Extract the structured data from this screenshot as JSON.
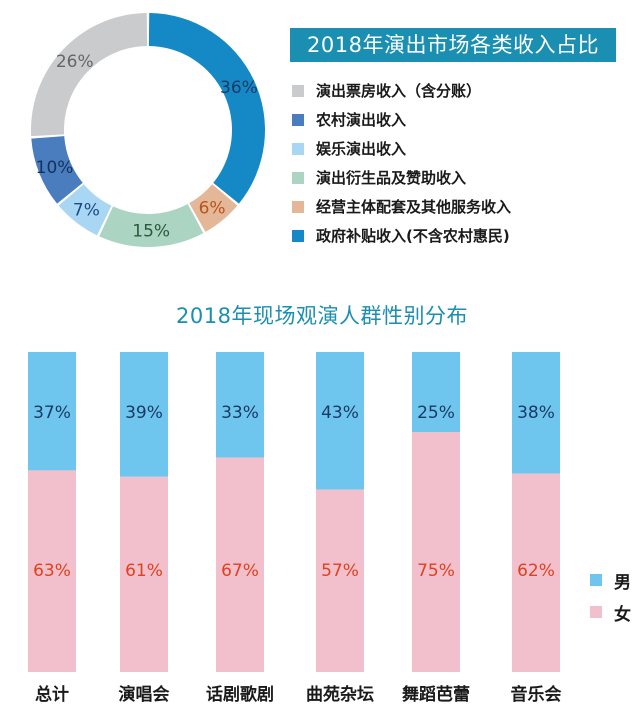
{
  "chart_data": [
    {
      "type": "pie",
      "title": "2018年演出市场各类收入占比",
      "slices": [
        {
          "label": "政府补贴收入(不含农村惠民)",
          "value": 36,
          "display": "36%",
          "color": "#1589c5",
          "label_color": "#1a3a66"
        },
        {
          "label": "经营主体配套及其他服务收入",
          "value": 6,
          "display": "6%",
          "color": "#e3b797",
          "label_color": "#b8531d"
        },
        {
          "label": "演出衍生品及赞助收入",
          "value": 15,
          "display": "15%",
          "color": "#abd4c3",
          "label_color": "#2a5a3a"
        },
        {
          "label": "娱乐演出收入",
          "value": 7,
          "display": "7%",
          "color": "#a9d7f3",
          "label_color": "#1a4a88"
        },
        {
          "label": "农村演出收入",
          "value": 10,
          "display": "10%",
          "color": "#4a7dbd",
          "label_color": "#15305e"
        },
        {
          "label": "演出票房收入（含分账）",
          "value": 26,
          "display": "26%",
          "color": "#c9cbcd",
          "label_color": "#666666"
        }
      ],
      "legend_order": [
        {
          "label": "演出票房收入（含分账）",
          "color": "#c9cbcd"
        },
        {
          "label": "农村演出收入",
          "color": "#4a7dbd"
        },
        {
          "label": "娱乐演出收入",
          "color": "#a9d7f3"
        },
        {
          "label": "演出衍生品及赞助收入",
          "color": "#abd4c3"
        },
        {
          "label": "经营主体配套及其他服务收入",
          "color": "#e3b797"
        },
        {
          "label": "政府补贴收入(不含农村惠民)",
          "color": "#1589c5"
        }
      ]
    },
    {
      "type": "bar",
      "stacked": true,
      "title": "2018年现场观演人群性别分布",
      "categories": [
        "总计",
        "演唱会",
        "话剧歌剧",
        "曲苑杂坛",
        "舞蹈芭蕾",
        "音乐会"
      ],
      "series": [
        {
          "name": "男",
          "color": "#6ec6ee",
          "label_color": "#1a3a66",
          "values": [
            37,
            39,
            33,
            43,
            25,
            38
          ],
          "labels": [
            "37%",
            "39%",
            "33%",
            "43%",
            "25%",
            "38%"
          ]
        },
        {
          "name": "女",
          "color": "#f2bfcc",
          "label_color": "#e0421e",
          "values": [
            63,
            61,
            67,
            57,
            75,
            62
          ],
          "labels": [
            "63%",
            "61%",
            "67%",
            "57%",
            "75%",
            "62%"
          ]
        }
      ],
      "ylim": [
        0,
        100
      ]
    }
  ]
}
